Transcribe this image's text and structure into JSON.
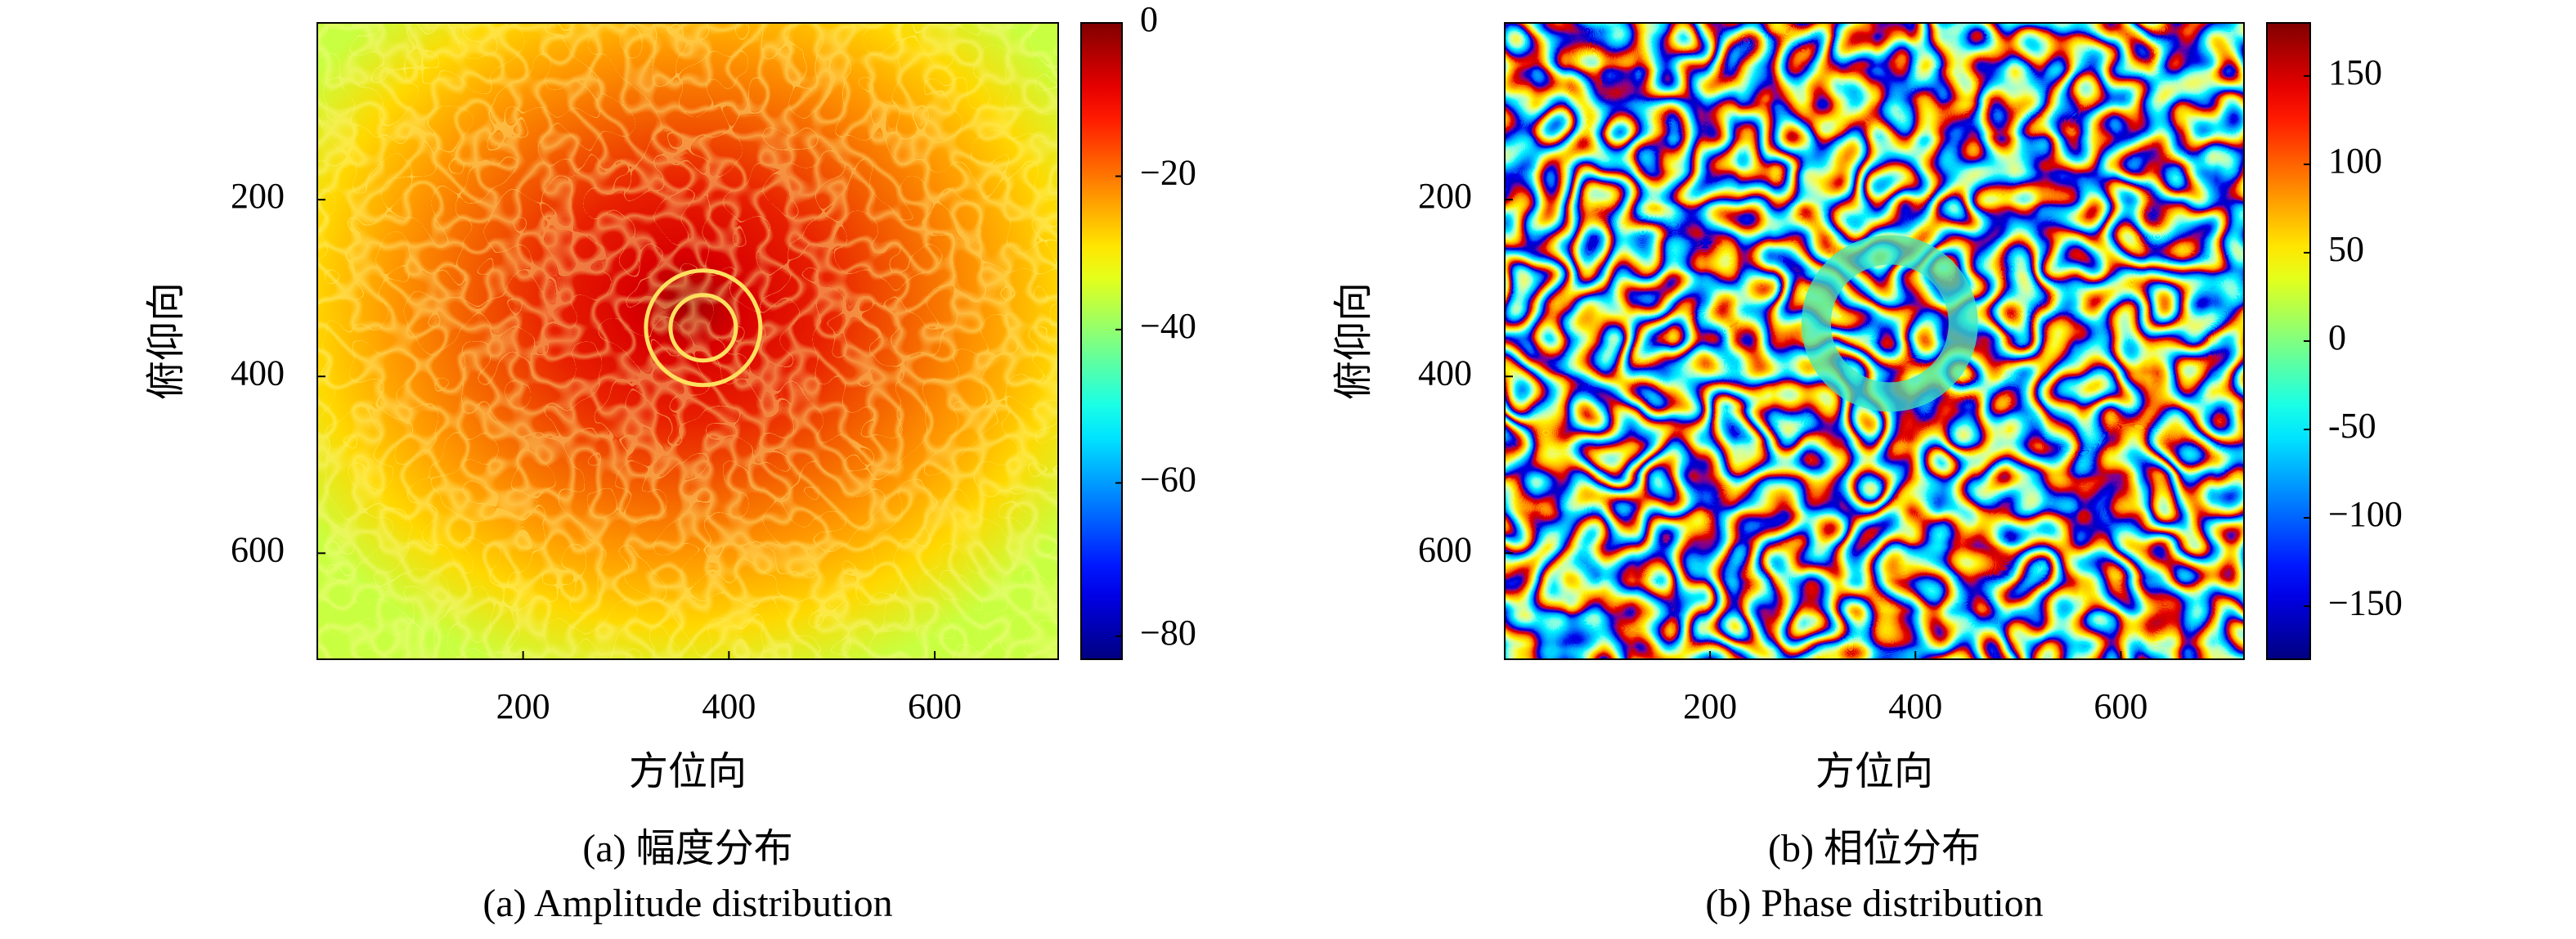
{
  "chart_data": [
    {
      "type": "heatmap",
      "xlabel": "方位向",
      "ylabel": "俯仰向",
      "caption": [
        "(a) 幅度分布",
        "(a) Amplitude distribution"
      ],
      "xlim": [
        0,
        720
      ],
      "ylim": [
        0,
        720
      ],
      "y_inverted": true,
      "xticks": [
        200,
        400,
        600
      ],
      "yticks": [
        200,
        400,
        600
      ],
      "colormap": "jet",
      "pattern": "amplitude",
      "clim": [
        -83,
        0
      ],
      "cticks": [
        0,
        {
          "value": -20,
          "label": "−20"
        },
        {
          "value": -40,
          "label": "−40"
        },
        {
          "value": -60,
          "label": "−60"
        },
        {
          "value": -80,
          "label": "−80"
        }
      ]
    },
    {
      "type": "heatmap",
      "xlabel": "方位向",
      "ylabel": "俯仰向",
      "caption": [
        "(b) 相位分布",
        "(b) Phase distribution"
      ],
      "xlim": [
        0,
        720
      ],
      "ylim": [
        0,
        720
      ],
      "y_inverted": true,
      "xticks": [
        200,
        400,
        600
      ],
      "yticks": [
        200,
        400,
        600
      ],
      "colormap": "jet",
      "pattern": "phase",
      "clim": [
        -180,
        180
      ],
      "cticks": [
        150,
        100,
        50,
        0,
        {
          "value": -50,
          "label": "-50"
        },
        {
          "value": -100,
          "label": "−100"
        },
        {
          "value": -150,
          "label": "−150"
        }
      ]
    }
  ]
}
